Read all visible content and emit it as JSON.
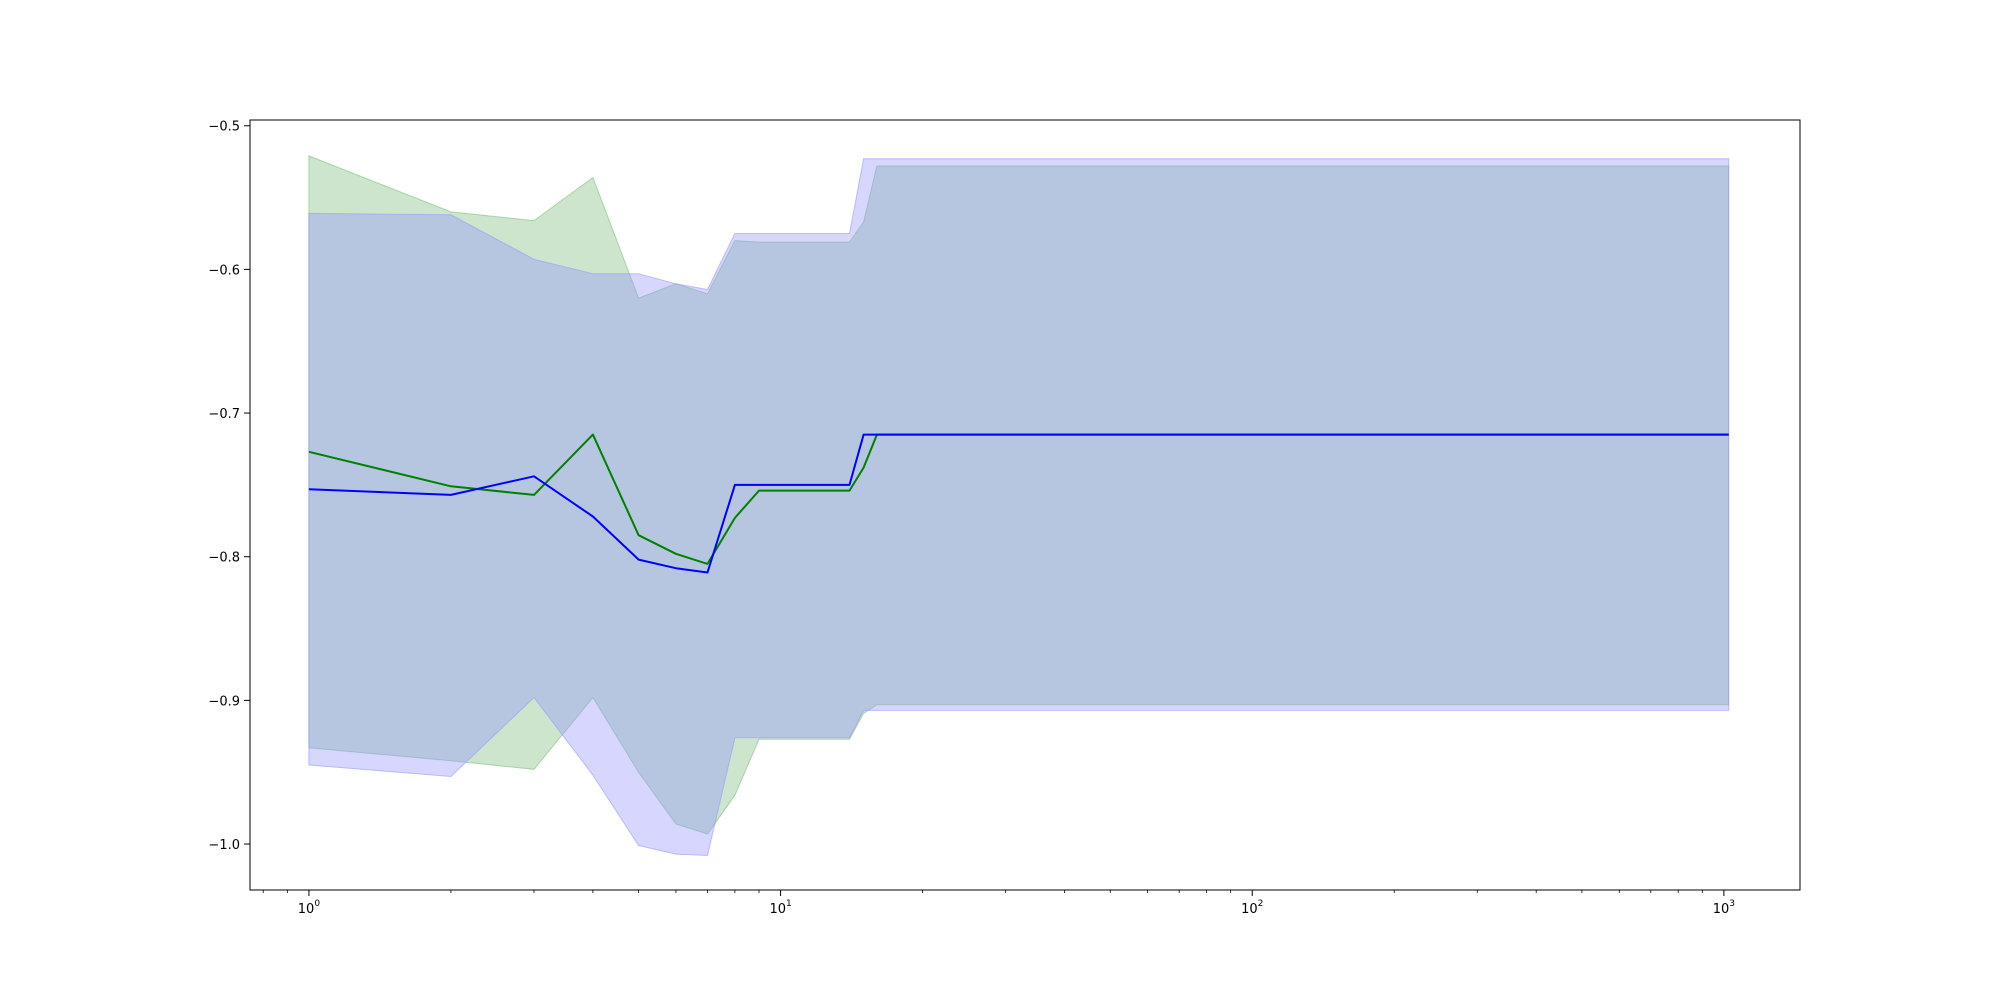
{
  "chart_data": {
    "type": "line",
    "title": "",
    "xlabel": "",
    "ylabel": "",
    "xscale": "log",
    "xlim": [
      0.75,
      1450
    ],
    "ylim": [
      -1.032,
      -0.496
    ],
    "grid": false,
    "x_ticks": [
      {
        "value": 1,
        "base": "10",
        "exp": "0"
      },
      {
        "value": 10,
        "base": "10",
        "exp": "1"
      },
      {
        "value": 100,
        "base": "10",
        "exp": "2"
      },
      {
        "value": 1000,
        "base": "10",
        "exp": "3"
      }
    ],
    "y_ticks": [
      {
        "value": -0.5,
        "label": "−0.5"
      },
      {
        "value": -0.6,
        "label": "−0.6"
      },
      {
        "value": -0.7,
        "label": "−0.7"
      },
      {
        "value": -0.8,
        "label": "−0.8"
      },
      {
        "value": -0.9,
        "label": "−0.9"
      },
      {
        "value": -1.0,
        "label": "−1.0"
      }
    ],
    "series": [
      {
        "color": "#008000",
        "band_color": "#7fbf7f",
        "x": [
          1,
          2,
          3,
          4,
          5,
          6,
          7,
          8,
          9,
          10,
          14,
          15,
          16,
          1024
        ],
        "y": [
          -0.727,
          -0.751,
          -0.757,
          -0.715,
          -0.785,
          -0.798,
          -0.805,
          -0.773,
          -0.754,
          -0.754,
          -0.754,
          -0.738,
          -0.715,
          -0.715
        ],
        "upper": [
          -0.521,
          -0.56,
          -0.566,
          -0.536,
          -0.62,
          -0.61,
          -0.617,
          -0.58,
          -0.581,
          -0.581,
          -0.581,
          -0.567,
          -0.528,
          -0.528
        ],
        "lower": [
          -0.933,
          -0.942,
          -0.948,
          -0.898,
          -0.95,
          -0.986,
          -0.993,
          -0.966,
          -0.927,
          -0.927,
          -0.927,
          -0.909,
          -0.903,
          -0.903
        ]
      },
      {
        "color": "#0000ff",
        "band_color": "#9999ff",
        "x": [
          1,
          2,
          3,
          4,
          5,
          6,
          7,
          8,
          9,
          10,
          14,
          15,
          16,
          1024
        ],
        "y": [
          -0.753,
          -0.757,
          -0.744,
          -0.772,
          -0.802,
          -0.808,
          -0.811,
          -0.75,
          -0.75,
          -0.75,
          -0.75,
          -0.715,
          -0.715,
          -0.715
        ],
        "upper": [
          -0.561,
          -0.562,
          -0.593,
          -0.603,
          -0.603,
          -0.61,
          -0.614,
          -0.575,
          -0.575,
          -0.575,
          -0.575,
          -0.523,
          -0.523,
          -0.523
        ],
        "lower": [
          -0.945,
          -0.953,
          -0.898,
          -0.952,
          -1.001,
          -1.007,
          -1.008,
          -0.926,
          -0.926,
          -0.926,
          -0.926,
          -0.907,
          -0.907,
          -0.907
        ]
      }
    ]
  }
}
